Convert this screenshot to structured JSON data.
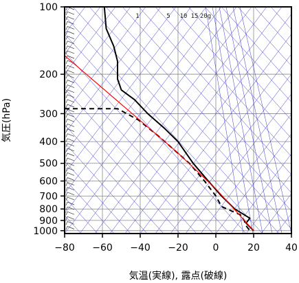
{
  "chart_data": {
    "type": "line",
    "title": "",
    "xlabel": "気温(実線), 露点(破線)",
    "ylabel": "気圧(hPa)",
    "xlim": [
      -80,
      40
    ],
    "ylim": [
      1030,
      100
    ],
    "y_scale": "log",
    "x_ticks": [
      -80,
      -60,
      -40,
      -20,
      0,
      20,
      40
    ],
    "x_tick_labels": [
      "−80",
      "−60",
      "−40",
      "−20",
      "0",
      "20",
      "40"
    ],
    "y_ticks": [
      100,
      200,
      300,
      400,
      500,
      600,
      700,
      800,
      900,
      1000
    ],
    "y_tick_labels": [
      "100",
      "200",
      "300",
      "400",
      "500",
      "600",
      "700",
      "800",
      "900",
      "1000"
    ],
    "grid": true,
    "mixing_ratio_labels": [
      "1",
      "5",
      "10",
      "15",
      "20g"
    ],
    "colors": {
      "temperature": "#000000",
      "dewpoint": "#000000",
      "parcel": "#ff0000",
      "adiabat_lines": "#3333cc",
      "grid": "#888888",
      "wind_barbs": "#333333"
    },
    "series": [
      {
        "key": "temperature",
        "style": "solid",
        "points": [
          [
            -59,
            100
          ],
          [
            -58,
            125
          ],
          [
            -54,
            150
          ],
          [
            -52,
            175
          ],
          [
            -52,
            200
          ],
          [
            -52,
            210
          ],
          [
            -50,
            235
          ],
          [
            -43,
            260
          ],
          [
            -36,
            300
          ],
          [
            -27,
            350
          ],
          [
            -20,
            400
          ],
          [
            -12,
            500
          ],
          [
            -4,
            600
          ],
          [
            3,
            700
          ],
          [
            10,
            800
          ],
          [
            18,
            880
          ],
          [
            16,
            925
          ],
          [
            20,
            1000
          ]
        ]
      },
      {
        "key": "dewpoint",
        "style": "dashed",
        "points": [
          [
            -80,
            285
          ],
          [
            -52,
            285
          ],
          [
            -41,
            320
          ],
          [
            -30,
            380
          ],
          [
            -14,
            500
          ],
          [
            -6,
            600
          ],
          [
            0,
            700
          ],
          [
            3,
            780
          ],
          [
            13,
            850
          ],
          [
            15,
            900
          ],
          [
            16,
            950
          ],
          [
            18,
            1000
          ]
        ]
      },
      {
        "key": "parcel",
        "style": "solid",
        "points": [
          [
            -80,
            165
          ],
          [
            -20,
            450
          ],
          [
            0,
            650
          ],
          [
            20,
            1000
          ]
        ]
      }
    ]
  }
}
